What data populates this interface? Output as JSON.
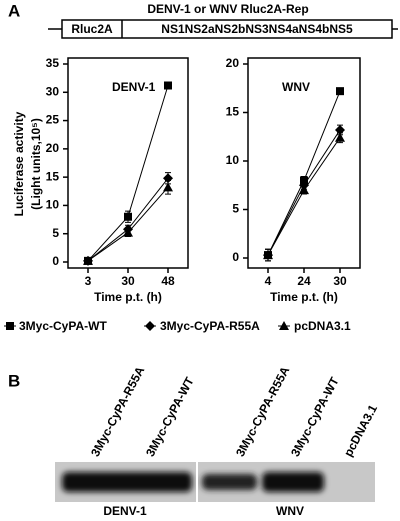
{
  "panel_labels": [
    "A",
    "B"
  ],
  "construct": {
    "title": "DENV-1 or WNV Rluc2A-Rep",
    "segments": [
      "Rluc2A",
      "NS1NS2aNS2bNS3NS4aNS4bNS5"
    ]
  },
  "y_label": [
    "Luciferase activity",
    "(Light units,10⁵)"
  ],
  "chart_data": [
    {
      "type": "line",
      "title": "DENV-1",
      "x_label": "Time p.t. (h)",
      "categories": [
        "3",
        "30",
        "48"
      ],
      "ylim": [
        0,
        35
      ],
      "yticks": [
        0,
        5,
        10,
        15,
        20,
        25,
        30,
        35
      ],
      "series": [
        {
          "name": "3Myc-CyPA-WT",
          "marker": "square",
          "color": "#000000",
          "values": [
            0.2,
            8,
            31.2
          ],
          "errors": [
            0.5,
            1,
            0.5
          ]
        },
        {
          "name": "3Myc-CyPA-R55A",
          "marker": "diamond",
          "color": "#000000",
          "values": [
            0.2,
            5.8,
            14.8
          ],
          "errors": [
            0.4,
            0.7,
            1
          ]
        },
        {
          "name": "pcDNA3.1",
          "marker": "triangle",
          "color": "#000000",
          "values": [
            0.2,
            5.2,
            13.2
          ],
          "errors": [
            0.4,
            0.7,
            1.2
          ]
        }
      ]
    },
    {
      "type": "line",
      "title": "WNV",
      "x_label": "Time p.t. (h)",
      "categories": [
        "4",
        "24",
        "30"
      ],
      "ylim": [
        0,
        20
      ],
      "yticks": [
        0,
        5,
        10,
        15,
        20
      ],
      "series": [
        {
          "marker": "square",
          "color": "#000000",
          "values": [
            0.3,
            8,
            17.2
          ],
          "errors": [
            0.6,
            0.4,
            0.3
          ]
        },
        {
          "marker": "diamond",
          "color": "#000000",
          "values": [
            0.3,
            7.5,
            13.2
          ],
          "errors": [
            0.6,
            0.4,
            0.5
          ]
        },
        {
          "marker": "triangle",
          "color": "#000000",
          "values": [
            0.3,
            7,
            12.4
          ],
          "errors": [
            0.6,
            0.4,
            0.5
          ]
        }
      ]
    }
  ],
  "blot": {
    "lanes": [
      "3Myc-CyPA-R55A",
      "3Myc-CyPA-WT",
      "3Myc-CyPA-R55A",
      "3Myc-CyPA-WT",
      "pcDNA3.1"
    ],
    "groups": [
      "DENV-1",
      "WNV"
    ]
  }
}
